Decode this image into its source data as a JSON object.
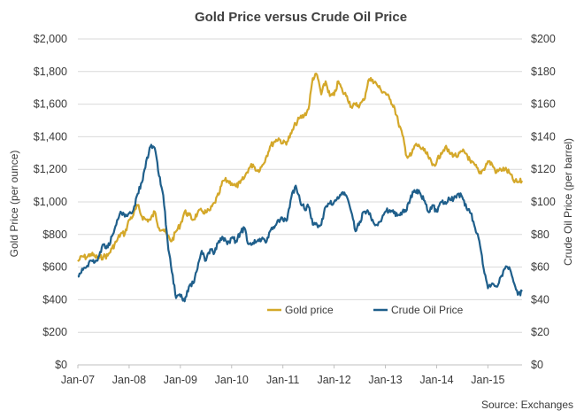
{
  "chart_data": {
    "type": "line",
    "title": "Gold Price versus Crude Oil Price",
    "x_tick_labels": [
      "Jan-07",
      "Jan-08",
      "Jan-09",
      "Jan-10",
      "Jan-11",
      "Jan-12",
      "Jan-13",
      "Jan-14",
      "Jan-15"
    ],
    "x_range": [
      "Jan-07",
      "Sep-15"
    ],
    "ylabel_left": "Gold Price (per ounce)",
    "ylabel_right": "Crude Oil Price (per barrel)",
    "ylim_left": [
      0,
      2000
    ],
    "ylim_right": [
      0,
      200
    ],
    "y_ticks_left": [
      "$0",
      "$200",
      "$400",
      "$600",
      "$800",
      "$1,000",
      "$1,200",
      "$1,400",
      "$1,600",
      "$1,800",
      "$2,000"
    ],
    "y_ticks_right": [
      "$0",
      "$20",
      "$40",
      "$60",
      "$80",
      "$100",
      "$120",
      "$140",
      "$160",
      "$180",
      "$200"
    ],
    "grid": true,
    "legend_position": "center-bottom",
    "source": "Source: Exchanges",
    "series": [
      {
        "name": "Gold price",
        "axis": "left",
        "color": "#D4A82A",
        "points": [
          [
            "2007-01",
            635
          ],
          [
            "2007-02",
            665
          ],
          [
            "2007-03",
            660
          ],
          [
            "2007-04",
            680
          ],
          [
            "2007-05",
            665
          ],
          [
            "2007-06",
            655
          ],
          [
            "2007-07",
            665
          ],
          [
            "2007-08",
            670
          ],
          [
            "2007-09",
            715
          ],
          [
            "2007-10",
            755
          ],
          [
            "2007-11",
            805
          ],
          [
            "2007-12",
            805
          ],
          [
            "2008-01",
            890
          ],
          [
            "2008-02",
            920
          ],
          [
            "2008-03",
            980
          ],
          [
            "2008-04",
            910
          ],
          [
            "2008-05",
            890
          ],
          [
            "2008-06",
            890
          ],
          [
            "2008-07",
            940
          ],
          [
            "2008-08",
            840
          ],
          [
            "2008-09",
            830
          ],
          [
            "2008-10",
            790
          ],
          [
            "2008-11",
            760
          ],
          [
            "2008-12",
            820
          ],
          [
            "2009-01",
            860
          ],
          [
            "2009-02",
            940
          ],
          [
            "2009-03",
            920
          ],
          [
            "2009-04",
            890
          ],
          [
            "2009-05",
            930
          ],
          [
            "2009-06",
            945
          ],
          [
            "2009-07",
            935
          ],
          [
            "2009-08",
            950
          ],
          [
            "2009-09",
            995
          ],
          [
            "2009-10",
            1045
          ],
          [
            "2009-11",
            1130
          ],
          [
            "2009-12",
            1130
          ],
          [
            "2010-01",
            1115
          ],
          [
            "2010-02",
            1095
          ],
          [
            "2010-03",
            1115
          ],
          [
            "2010-04",
            1150
          ],
          [
            "2010-05",
            1205
          ],
          [
            "2010-06",
            1230
          ],
          [
            "2010-07",
            1190
          ],
          [
            "2010-08",
            1215
          ],
          [
            "2010-09",
            1270
          ],
          [
            "2010-10",
            1340
          ],
          [
            "2010-11",
            1370
          ],
          [
            "2010-12",
            1390
          ],
          [
            "2011-01",
            1360
          ],
          [
            "2011-02",
            1370
          ],
          [
            "2011-03",
            1420
          ],
          [
            "2011-04",
            1480
          ],
          [
            "2011-05",
            1515
          ],
          [
            "2011-06",
            1530
          ],
          [
            "2011-07",
            1570
          ],
          [
            "2011-08",
            1760
          ],
          [
            "2011-09",
            1780
          ],
          [
            "2011-10",
            1660
          ],
          [
            "2011-11",
            1740
          ],
          [
            "2011-12",
            1650
          ],
          [
            "2012-01",
            1655
          ],
          [
            "2012-02",
            1740
          ],
          [
            "2012-03",
            1675
          ],
          [
            "2012-04",
            1650
          ],
          [
            "2012-05",
            1585
          ],
          [
            "2012-06",
            1595
          ],
          [
            "2012-07",
            1595
          ],
          [
            "2012-08",
            1625
          ],
          [
            "2012-09",
            1745
          ],
          [
            "2012-10",
            1750
          ],
          [
            "2012-11",
            1720
          ],
          [
            "2012-12",
            1685
          ],
          [
            "2013-01",
            1670
          ],
          [
            "2013-02",
            1630
          ],
          [
            "2013-03",
            1590
          ],
          [
            "2013-04",
            1490
          ],
          [
            "2013-05",
            1410
          ],
          [
            "2013-06",
            1280
          ],
          [
            "2013-07",
            1285
          ],
          [
            "2013-08",
            1350
          ],
          [
            "2013-09",
            1340
          ],
          [
            "2013-10",
            1315
          ],
          [
            "2013-11",
            1280
          ],
          [
            "2013-12",
            1225
          ],
          [
            "2014-01",
            1245
          ],
          [
            "2014-02",
            1300
          ],
          [
            "2014-03",
            1335
          ],
          [
            "2014-04",
            1300
          ],
          [
            "2014-05",
            1290
          ],
          [
            "2014-06",
            1280
          ],
          [
            "2014-07",
            1310
          ],
          [
            "2014-08",
            1295
          ],
          [
            "2014-09",
            1240
          ],
          [
            "2014-10",
            1225
          ],
          [
            "2014-11",
            1175
          ],
          [
            "2014-12",
            1200
          ],
          [
            "2015-01",
            1250
          ],
          [
            "2015-02",
            1230
          ],
          [
            "2015-03",
            1180
          ],
          [
            "2015-04",
            1200
          ],
          [
            "2015-05",
            1200
          ],
          [
            "2015-06",
            1180
          ],
          [
            "2015-07",
            1130
          ],
          [
            "2015-08",
            1120
          ],
          [
            "2015-09",
            1130
          ]
        ]
      },
      {
        "name": "Crude Oil Price",
        "axis": "right",
        "color": "#1F5F8B",
        "points": [
          [
            "2007-01",
            54
          ],
          [
            "2007-02",
            59
          ],
          [
            "2007-03",
            60
          ],
          [
            "2007-04",
            64
          ],
          [
            "2007-05",
            63
          ],
          [
            "2007-06",
            67
          ],
          [
            "2007-07",
            74
          ],
          [
            "2007-08",
            72
          ],
          [
            "2007-09",
            79
          ],
          [
            "2007-10",
            86
          ],
          [
            "2007-11",
            94
          ],
          [
            "2007-12",
            91
          ],
          [
            "2008-01",
            93
          ],
          [
            "2008-02",
            95
          ],
          [
            "2008-03",
            105
          ],
          [
            "2008-04",
            112
          ],
          [
            "2008-05",
            125
          ],
          [
            "2008-06",
            134
          ],
          [
            "2008-07",
            133
          ],
          [
            "2008-08",
            116
          ],
          [
            "2008-09",
            104
          ],
          [
            "2008-10",
            76
          ],
          [
            "2008-11",
            57
          ],
          [
            "2008-12",
            41
          ],
          [
            "2009-01",
            42
          ],
          [
            "2009-02",
            39
          ],
          [
            "2009-03",
            48
          ],
          [
            "2009-04",
            50
          ],
          [
            "2009-05",
            59
          ],
          [
            "2009-06",
            70
          ],
          [
            "2009-07",
            64
          ],
          [
            "2009-08",
            71
          ],
          [
            "2009-09",
            69
          ],
          [
            "2009-10",
            76
          ],
          [
            "2009-11",
            78
          ],
          [
            "2009-12",
            74
          ],
          [
            "2010-01",
            78
          ],
          [
            "2010-02",
            76
          ],
          [
            "2010-03",
            81
          ],
          [
            "2010-04",
            84
          ],
          [
            "2010-05",
            74
          ],
          [
            "2010-06",
            75
          ],
          [
            "2010-07",
            76
          ],
          [
            "2010-08",
            77
          ],
          [
            "2010-09",
            75
          ],
          [
            "2010-10",
            82
          ],
          [
            "2010-11",
            84
          ],
          [
            "2010-12",
            89
          ],
          [
            "2011-01",
            89
          ],
          [
            "2011-02",
            89
          ],
          [
            "2011-03",
            103
          ],
          [
            "2011-04",
            110
          ],
          [
            "2011-05",
            101
          ],
          [
            "2011-06",
            96
          ],
          [
            "2011-07",
            97
          ],
          [
            "2011-08",
            86
          ],
          [
            "2011-09",
            86
          ],
          [
            "2011-10",
            86
          ],
          [
            "2011-11",
            97
          ],
          [
            "2011-12",
            99
          ],
          [
            "2012-01",
            100
          ],
          [
            "2012-02",
            102
          ],
          [
            "2012-03",
            106
          ],
          [
            "2012-04",
            103
          ],
          [
            "2012-05",
            94
          ],
          [
            "2012-06",
            82
          ],
          [
            "2012-07",
            88
          ],
          [
            "2012-08",
            94
          ],
          [
            "2012-09",
            94
          ],
          [
            "2012-10",
            89
          ],
          [
            "2012-11",
            86
          ],
          [
            "2012-12",
            88
          ],
          [
            "2013-01",
            94
          ],
          [
            "2013-02",
            95
          ],
          [
            "2013-03",
            93
          ],
          [
            "2013-04",
            92
          ],
          [
            "2013-05",
            94
          ],
          [
            "2013-06",
            95
          ],
          [
            "2013-07",
            104
          ],
          [
            "2013-08",
            106
          ],
          [
            "2013-09",
            106
          ],
          [
            "2013-10",
            101
          ],
          [
            "2013-11",
            94
          ],
          [
            "2013-12",
            98
          ],
          [
            "2014-01",
            94
          ],
          [
            "2014-02",
            100
          ],
          [
            "2014-03",
            100
          ],
          [
            "2014-04",
            102
          ],
          [
            "2014-05",
            102
          ],
          [
            "2014-06",
            105
          ],
          [
            "2014-07",
            103
          ],
          [
            "2014-08",
            96
          ],
          [
            "2014-09",
            93
          ],
          [
            "2014-10",
            84
          ],
          [
            "2014-11",
            76
          ],
          [
            "2014-12",
            59
          ],
          [
            "2015-01",
            47
          ],
          [
            "2015-02",
            50
          ],
          [
            "2015-03",
            48
          ],
          [
            "2015-04",
            54
          ],
          [
            "2015-05",
            59
          ],
          [
            "2015-06",
            60
          ],
          [
            "2015-07",
            51
          ],
          [
            "2015-08",
            43
          ],
          [
            "2015-09",
            45
          ]
        ]
      }
    ]
  }
}
